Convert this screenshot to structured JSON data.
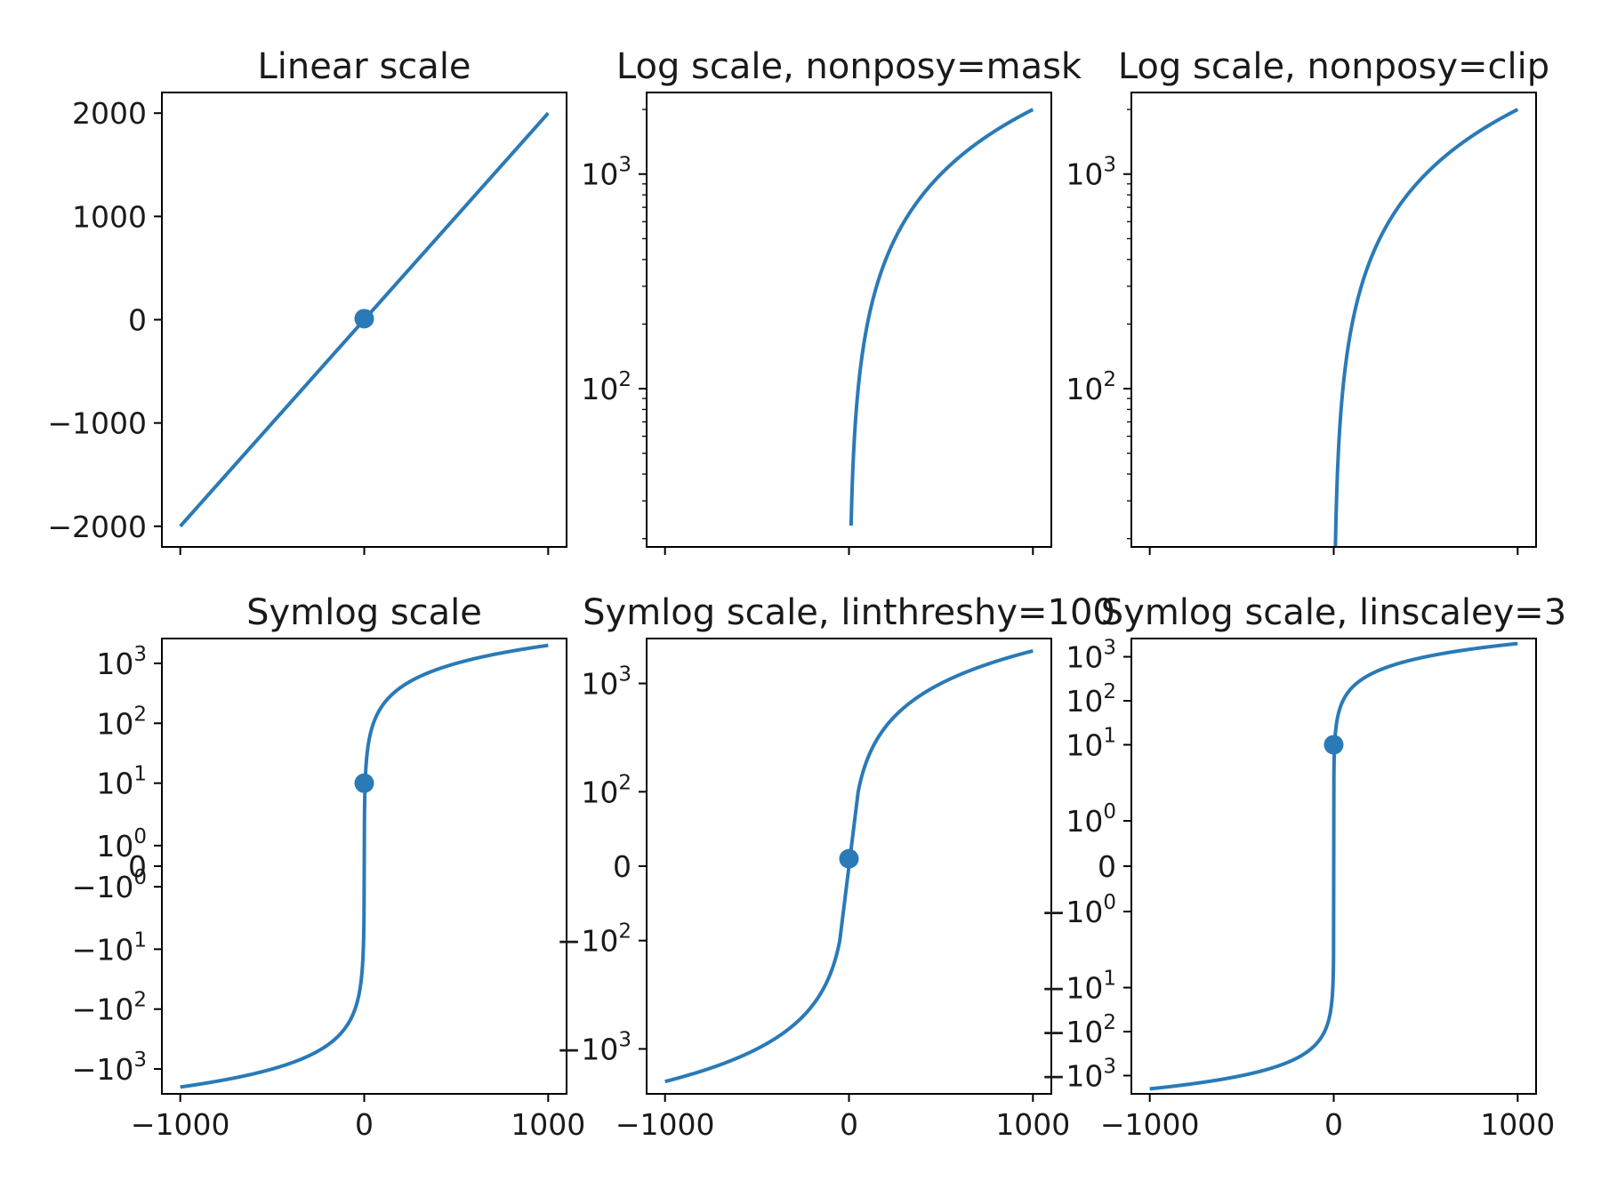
{
  "chart_data": [
    {
      "type": "line",
      "title": "Linear scale",
      "yscale": "linear",
      "xlim": [
        -1100,
        1100
      ],
      "ylim": [
        -2200,
        2200
      ],
      "x": [
        -1000,
        1000
      ],
      "y": [
        -2000,
        2000
      ],
      "marker": {
        "x": 0,
        "y": 10
      },
      "xticks": [
        {
          "v": -1000,
          "label": ""
        },
        {
          "v": 0,
          "label": ""
        },
        {
          "v": 1000,
          "label": ""
        }
      ],
      "yticks": [
        {
          "v": 2000,
          "label": "2000"
        },
        {
          "v": 1000,
          "label": "1000"
        },
        {
          "v": 0,
          "label": "0"
        },
        {
          "v": -1000,
          "label": "−1000"
        },
        {
          "v": -2000,
          "label": "−2000"
        }
      ]
    },
    {
      "type": "line",
      "title": "Log scale, nonposy=mask",
      "yscale": "log",
      "nonposy": "mask",
      "xlim": [
        -1100,
        1100
      ],
      "ylim": [
        18.3,
        2400
      ],
      "x": [
        -1000,
        1000
      ],
      "y": [
        -2000,
        2000
      ],
      "xticks": [
        {
          "v": -1000,
          "label": ""
        },
        {
          "v": 0,
          "label": ""
        },
        {
          "v": 1000,
          "label": ""
        }
      ],
      "yticks": [
        {
          "v": 1000,
          "base": "10",
          "exp": "3"
        },
        {
          "v": 100,
          "base": "10",
          "exp": "2"
        }
      ]
    },
    {
      "type": "line",
      "title": "Log scale, nonposy=clip",
      "yscale": "log",
      "nonposy": "clip",
      "xlim": [
        -1100,
        1100
      ],
      "ylim": [
        18.3,
        2400
      ],
      "x": [
        -1000,
        1000
      ],
      "y": [
        -2000,
        2000
      ],
      "xticks": [
        {
          "v": -1000,
          "label": ""
        },
        {
          "v": 0,
          "label": ""
        },
        {
          "v": 1000,
          "label": ""
        }
      ],
      "yticks": [
        {
          "v": 1000,
          "base": "10",
          "exp": "3"
        },
        {
          "v": 100,
          "base": "10",
          "exp": "2"
        }
      ]
    },
    {
      "type": "line",
      "title": "Symlog scale",
      "yscale": "symlog",
      "linthresh": 2,
      "linscale": 1,
      "xlim": [
        -1100,
        1100
      ],
      "ylim": [
        -2600,
        2600
      ],
      "x": [
        -1000,
        1000
      ],
      "y": [
        -2000,
        2000
      ],
      "marker": {
        "x": 0,
        "y": 10
      },
      "xticks": [
        {
          "v": -1000,
          "label": "−1000"
        },
        {
          "v": 0,
          "label": "0"
        },
        {
          "v": 1000,
          "label": "1000"
        }
      ],
      "yticks": [
        {
          "v": 1000,
          "base": "10",
          "exp": "3"
        },
        {
          "v": 100,
          "base": "10",
          "exp": "2"
        },
        {
          "v": 10,
          "base": "10",
          "exp": "1"
        },
        {
          "v": 1,
          "base": "10",
          "exp": "0"
        },
        {
          "v": 0,
          "base": "0",
          "exp": ""
        },
        {
          "v": -1,
          "base": "−10",
          "exp": "0"
        },
        {
          "v": -10,
          "base": "−10",
          "exp": "1"
        },
        {
          "v": -100,
          "base": "−10",
          "exp": "2"
        },
        {
          "v": -1000,
          "base": "−10",
          "exp": "3"
        }
      ]
    },
    {
      "type": "line",
      "title": "Symlog scale, linthreshy=100",
      "yscale": "symlog",
      "linthresh": 100,
      "linscale": 1,
      "xlim": [
        -1100,
        1100
      ],
      "ylim": [
        -2600,
        2600
      ],
      "x": [
        -1000,
        1000
      ],
      "y": [
        -2000,
        2000
      ],
      "marker": {
        "x": 0,
        "y": 10
      },
      "xticks": [
        {
          "v": -1000,
          "label": "−1000"
        },
        {
          "v": 0,
          "label": "0"
        },
        {
          "v": 1000,
          "label": "1000"
        }
      ],
      "yticks": [
        {
          "v": 1000,
          "base": "10",
          "exp": "3"
        },
        {
          "v": 100,
          "base": "10",
          "exp": "2"
        },
        {
          "v": 0,
          "base": "0",
          "exp": ""
        },
        {
          "v": -100,
          "base": "−10",
          "exp": "2"
        },
        {
          "v": -1000,
          "base": "−10",
          "exp": "3"
        }
      ]
    },
    {
      "type": "line",
      "title": "Symlog scale, linscaley=3",
      "yscale": "symlog",
      "linthresh": 2,
      "linscale": 3,
      "xlim": [
        -1100,
        1100
      ],
      "ylim": [
        -2600,
        2600
      ],
      "x": [
        -1000,
        1000
      ],
      "y": [
        -2000,
        2000
      ],
      "marker": {
        "x": 0,
        "y": 10
      },
      "xticks": [
        {
          "v": -1000,
          "label": "−1000"
        },
        {
          "v": 0,
          "label": "0"
        },
        {
          "v": 1000,
          "label": "1000"
        }
      ],
      "yticks": [
        {
          "v": 1000,
          "base": "10",
          "exp": "3"
        },
        {
          "v": 100,
          "base": "10",
          "exp": "2"
        },
        {
          "v": 10,
          "base": "10",
          "exp": "1"
        },
        {
          "v": 1,
          "base": "10",
          "exp": "0"
        },
        {
          "v": 0,
          "base": "0",
          "exp": ""
        },
        {
          "v": -1,
          "base": "−10",
          "exp": "0"
        },
        {
          "v": -10,
          "base": "−10",
          "exp": "1"
        },
        {
          "v": -100,
          "base": "−10",
          "exp": "2"
        },
        {
          "v": -1000,
          "base": "−10",
          "exp": "3"
        }
      ]
    }
  ]
}
